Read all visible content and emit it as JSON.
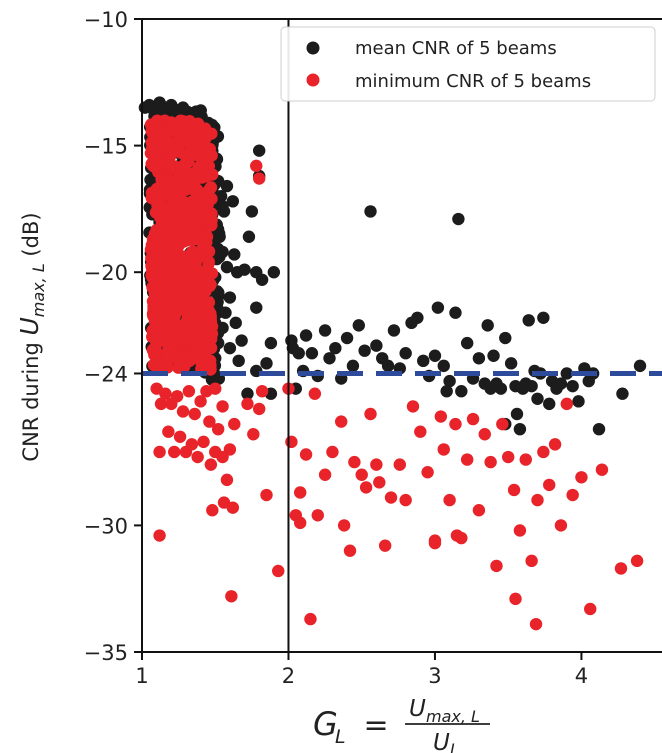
{
  "chart_data": {
    "type": "scatter",
    "title": "",
    "xlim": [
      1,
      4.55
    ],
    "ylim": [
      -35,
      -10
    ],
    "x_ticks": [
      1,
      2,
      3,
      4
    ],
    "y_ticks": [
      -10,
      -15,
      -20,
      -24,
      -30,
      -35
    ],
    "x_tick_labels": [
      "1",
      "2",
      "3",
      "4"
    ],
    "y_tick_labels": [
      "−10",
      "−15",
      "−20",
      "−24",
      "−30",
      "−35"
    ],
    "ylabel": {
      "prefix": "CNR during ",
      "var": "U",
      "sub": "max, L",
      "suffix": "  (dB)"
    },
    "xlabel": {
      "lhs": "G",
      "lhs_sub": "L",
      "eq": " = ",
      "num": "U",
      "num_sub": "max, L",
      "den": "U",
      "den_sub": "L"
    },
    "vline_x": 2,
    "hline_y": -24,
    "colors": {
      "mean": "#1c1c1c",
      "min": "#e8232a",
      "threshold": "#2e4a9b",
      "vline": "#111111"
    },
    "legend": {
      "position": "top-right",
      "entries": [
        "mean CNR of 5 beams",
        "minimum CNR of 5 beams"
      ]
    },
    "series": [
      {
        "name": "mean CNR of 5 beams",
        "color_key": "mean",
        "points": [
          [
            1.02,
            -13.5
          ],
          [
            1.05,
            -13.4
          ],
          [
            1.08,
            -13.6
          ],
          [
            1.12,
            -13.3
          ],
          [
            1.16,
            -13.5
          ],
          [
            1.2,
            -13.4
          ],
          [
            1.24,
            -13.6
          ],
          [
            1.28,
            -13.5
          ],
          [
            1.32,
            -13.7
          ],
          [
            1.36,
            -13.8
          ],
          [
            1.4,
            -14.0
          ],
          [
            1.44,
            -14.6
          ],
          [
            1.48,
            -15.0
          ],
          [
            1.5,
            -15.6
          ],
          [
            1.52,
            -16.4
          ],
          [
            1.54,
            -17.0
          ],
          [
            1.56,
            -17.6
          ],
          [
            1.53,
            -18.6
          ],
          [
            1.55,
            -19.2
          ],
          [
            1.58,
            -19.8
          ],
          [
            1.6,
            -21.0
          ],
          [
            1.57,
            -21.6
          ],
          [
            1.55,
            -22.2
          ],
          [
            1.52,
            -22.8
          ],
          [
            1.5,
            -23.4
          ],
          [
            1.48,
            -23.7
          ],
          [
            1.45,
            -20.5
          ],
          [
            1.42,
            -21.8
          ],
          [
            1.47,
            -19.0
          ],
          [
            1.5,
            -20.2
          ],
          [
            1.55,
            -17.4
          ],
          [
            1.52,
            -20.8
          ],
          [
            1.58,
            -16.6
          ],
          [
            1.62,
            -17.2
          ],
          [
            1.63,
            -19.3
          ],
          [
            1.64,
            -22.0
          ],
          [
            1.6,
            -23.0
          ],
          [
            1.66,
            -23.5
          ],
          [
            1.68,
            -22.7
          ],
          [
            1.65,
            -20.0
          ],
          [
            1.7,
            -19.9
          ],
          [
            1.73,
            -18.6
          ],
          [
            1.75,
            -17.6
          ],
          [
            1.78,
            -20.0
          ],
          [
            1.8,
            -15.2
          ],
          [
            1.8,
            -16.2
          ],
          [
            1.82,
            -20.3
          ],
          [
            1.85,
            -23.6
          ],
          [
            1.88,
            -22.8
          ],
          [
            1.9,
            -20.0
          ],
          [
            1.78,
            -23.9
          ],
          [
            1.72,
            -24.8
          ],
          [
            1.78,
            -21.4
          ],
          [
            1.88,
            -24.8
          ],
          [
            2.02,
            -22.7
          ],
          [
            2.03,
            -23.0
          ],
          [
            2.05,
            -24.6
          ],
          [
            2.07,
            -23.2
          ],
          [
            2.1,
            -23.9
          ],
          [
            2.12,
            -22.5
          ],
          [
            2.16,
            -23.2
          ],
          [
            2.2,
            -24.1
          ],
          [
            2.25,
            -22.3
          ],
          [
            2.28,
            -23.4
          ],
          [
            2.32,
            -23.0
          ],
          [
            2.36,
            -24.2
          ],
          [
            2.4,
            -22.6
          ],
          [
            2.44,
            -23.7
          ],
          [
            2.48,
            -22.1
          ],
          [
            2.52,
            -23.1
          ],
          [
            2.56,
            -17.6
          ],
          [
            2.6,
            -22.9
          ],
          [
            2.64,
            -23.4
          ],
          [
            2.68,
            -23.7
          ],
          [
            2.72,
            -22.3
          ],
          [
            2.76,
            -23.8
          ],
          [
            2.8,
            -23.2
          ],
          [
            2.84,
            -22.0
          ],
          [
            2.88,
            -21.8
          ],
          [
            2.92,
            -23.5
          ],
          [
            2.96,
            -24.1
          ],
          [
            3.0,
            -23.3
          ],
          [
            3.02,
            -21.4
          ],
          [
            3.06,
            -23.7
          ],
          [
            3.1,
            -24.3
          ],
          [
            3.14,
            -21.6
          ],
          [
            3.16,
            -17.9
          ],
          [
            3.18,
            -24.7
          ],
          [
            3.22,
            -22.8
          ],
          [
            3.26,
            -24.2
          ],
          [
            3.3,
            -23.4
          ],
          [
            3.34,
            -24.4
          ],
          [
            3.36,
            -22.1
          ],
          [
            3.38,
            -24.6
          ],
          [
            3.4,
            -23.3
          ],
          [
            3.42,
            -24.4
          ],
          [
            3.45,
            -24.6
          ],
          [
            3.48,
            -22.6
          ],
          [
            3.52,
            -23.6
          ],
          [
            3.55,
            -24.5
          ],
          [
            3.56,
            -25.6
          ],
          [
            3.58,
            -26.2
          ],
          [
            3.6,
            -24.6
          ],
          [
            3.62,
            -24.4
          ],
          [
            3.64,
            -21.9
          ],
          [
            3.66,
            -24.5
          ],
          [
            3.68,
            -23.9
          ],
          [
            3.72,
            -24.0
          ],
          [
            3.74,
            -21.8
          ],
          [
            3.78,
            -25.2
          ],
          [
            3.8,
            -24.3
          ],
          [
            3.83,
            -24.6
          ],
          [
            3.86,
            -24.4
          ],
          [
            3.9,
            -24.0
          ],
          [
            3.94,
            -24.5
          ],
          [
            3.98,
            -25.1
          ],
          [
            4.02,
            -23.8
          ],
          [
            4.05,
            -24.3
          ],
          [
            4.08,
            -24.0
          ],
          [
            4.12,
            -26.2
          ],
          [
            4.28,
            -24.8
          ],
          [
            4.4,
            -23.7
          ],
          [
            3.7,
            -25.0
          ],
          [
            3.48,
            -26.0
          ],
          [
            3.08,
            -24.7
          ]
        ]
      },
      {
        "name": "minimum CNR of 5 beams",
        "color_key": "min",
        "points": [
          [
            1.1,
            -24.6
          ],
          [
            1.13,
            -25.2
          ],
          [
            1.16,
            -24.8
          ],
          [
            1.2,
            -25.2
          ],
          [
            1.24,
            -24.9
          ],
          [
            1.28,
            -25.5
          ],
          [
            1.32,
            -24.7
          ],
          [
            1.36,
            -25.6
          ],
          [
            1.4,
            -25.1
          ],
          [
            1.44,
            -24.7
          ],
          [
            1.46,
            -25.9
          ],
          [
            1.5,
            -24.6
          ],
          [
            1.52,
            -26.2
          ],
          [
            1.55,
            -25.3
          ],
          [
            1.12,
            -27.1
          ],
          [
            1.18,
            -26.3
          ],
          [
            1.22,
            -27.1
          ],
          [
            1.26,
            -26.5
          ],
          [
            1.3,
            -27.1
          ],
          [
            1.34,
            -26.8
          ],
          [
            1.38,
            -27.3
          ],
          [
            1.42,
            -26.7
          ],
          [
            1.47,
            -27.6
          ],
          [
            1.5,
            -27.1
          ],
          [
            1.6,
            -27.0
          ],
          [
            1.63,
            -26.0
          ],
          [
            1.58,
            -28.2
          ],
          [
            1.55,
            -27.3
          ],
          [
            1.48,
            -29.4
          ],
          [
            1.56,
            -29.1
          ],
          [
            1.62,
            -29.3
          ],
          [
            1.12,
            -30.4
          ],
          [
            1.61,
            -32.8
          ],
          [
            1.72,
            -25.2
          ],
          [
            1.76,
            -26.4
          ],
          [
            1.8,
            -25.4
          ],
          [
            1.78,
            -15.8
          ],
          [
            1.8,
            -16.3
          ],
          [
            1.82,
            -24.7
          ],
          [
            1.85,
            -28.8
          ],
          [
            1.93,
            -31.8
          ],
          [
            2.0,
            -24.6
          ],
          [
            2.02,
            -26.7
          ],
          [
            2.05,
            -29.6
          ],
          [
            2.08,
            -28.7
          ],
          [
            2.12,
            -27.2
          ],
          [
            2.15,
            -33.7
          ],
          [
            2.18,
            -24.8
          ],
          [
            2.2,
            -29.6
          ],
          [
            2.25,
            -28.0
          ],
          [
            2.3,
            -27.1
          ],
          [
            2.36,
            -25.9
          ],
          [
            2.38,
            -30.0
          ],
          [
            2.42,
            -31.0
          ],
          [
            2.45,
            -27.5
          ],
          [
            2.5,
            -28.0
          ],
          [
            2.53,
            -28.5
          ],
          [
            2.56,
            -25.6
          ],
          [
            2.6,
            -27.6
          ],
          [
            2.62,
            -28.3
          ],
          [
            2.66,
            -30.8
          ],
          [
            2.7,
            -28.9
          ],
          [
            2.76,
            -27.6
          ],
          [
            2.8,
            -29.0
          ],
          [
            2.85,
            -25.3
          ],
          [
            2.9,
            -26.3
          ],
          [
            2.95,
            -27.9
          ],
          [
            3.0,
            -30.6
          ],
          [
            3.04,
            -25.7
          ],
          [
            3.06,
            -27.0
          ],
          [
            3.1,
            -29.0
          ],
          [
            3.14,
            -26.0
          ],
          [
            3.18,
            -30.5
          ],
          [
            3.22,
            -27.4
          ],
          [
            3.26,
            -25.8
          ],
          [
            3.3,
            -29.4
          ],
          [
            3.34,
            -26.4
          ],
          [
            3.38,
            -27.5
          ],
          [
            3.42,
            -31.6
          ],
          [
            3.46,
            -26.0
          ],
          [
            3.5,
            -27.3
          ],
          [
            3.54,
            -28.6
          ],
          [
            3.58,
            -30.2
          ],
          [
            3.62,
            -27.4
          ],
          [
            3.66,
            -31.4
          ],
          [
            3.7,
            -29.0
          ],
          [
            3.74,
            -27.1
          ],
          [
            3.78,
            -28.4
          ],
          [
            3.82,
            -26.8
          ],
          [
            3.86,
            -30.0
          ],
          [
            3.9,
            -25.2
          ],
          [
            3.94,
            -28.8
          ],
          [
            4.0,
            -28.1
          ],
          [
            4.06,
            -33.3
          ],
          [
            4.14,
            -27.8
          ],
          [
            4.27,
            -31.7
          ],
          [
            4.38,
            -31.4
          ],
          [
            3.55,
            -32.9
          ],
          [
            3.69,
            -33.9
          ],
          [
            3.15,
            -30.4
          ],
          [
            3.0,
            -30.7
          ],
          [
            2.08,
            -29.9
          ]
        ]
      }
    ]
  }
}
